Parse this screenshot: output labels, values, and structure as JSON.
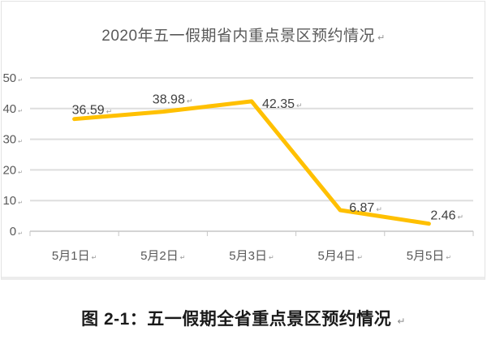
{
  "chart_data": {
    "type": "line",
    "title": "2020年五一假期省内重点景区预约情况",
    "categories": [
      "5月1日",
      "5月2日",
      "5月3日",
      "5月4日",
      "5月5日"
    ],
    "values": [
      36.59,
      38.98,
      42.35,
      6.87,
      2.46
    ],
    "data_labels": [
      "36.59",
      "38.98",
      "42.35",
      "6.87",
      "2.46"
    ],
    "yticks": [
      0,
      10,
      20,
      30,
      40,
      50
    ],
    "ylim": [
      0,
      50
    ],
    "xlabel": "",
    "ylabel": "",
    "grid": true,
    "legend": "none",
    "line_color": "#FFC000",
    "gridline_color": "#dedede",
    "axis_color": "#c6c6c6",
    "axis_text_color": "#595959",
    "data_label_color": "#404040"
  },
  "caption": {
    "text": "图 2-1：五一假期全省重点景区预约情况"
  },
  "formatting_mark": "↵"
}
